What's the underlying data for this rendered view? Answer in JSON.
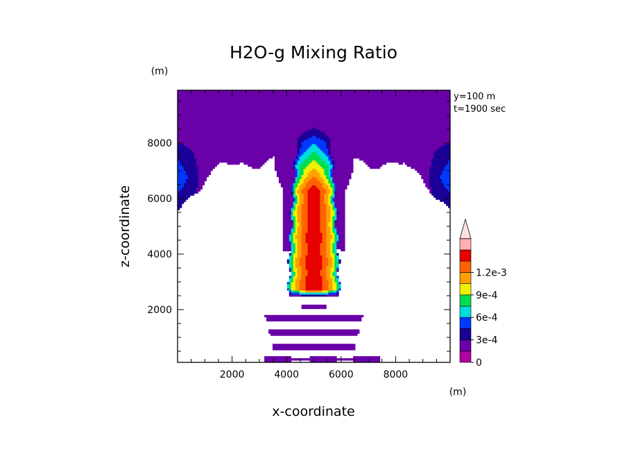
{
  "chart_data": {
    "type": "heatmap",
    "title": "H2O-g Mixing Ratio",
    "xlabel": "x-coordinate",
    "ylabel": "z-coordinate",
    "x_unit": "(m)",
    "y_unit": "(m)",
    "annotations": [
      "y=100 m",
      "t=1900 sec"
    ],
    "xlim": [
      0,
      10000
    ],
    "ylim": [
      100,
      9900
    ],
    "x_ticks": [
      2000,
      4000,
      6000,
      8000
    ],
    "y_ticks": [
      2000,
      4000,
      6000,
      8000
    ],
    "x_tick_labels": [
      "2000",
      "4000",
      "6000",
      "8000"
    ],
    "y_tick_labels": [
      "2000",
      "4000",
      "6000",
      "8000"
    ],
    "colorbar": {
      "levels": [
        0,
        0.00015,
        0.0003,
        0.00045,
        0.0006,
        0.00075,
        0.0009,
        0.00105,
        0.0012,
        0.00135
      ],
      "labels": [
        "0",
        "3e-4",
        "6e-4",
        "9e-4",
        "1.2e-3"
      ],
      "label_levels": [
        0,
        0.0003,
        0.0006,
        0.0009,
        0.0012
      ],
      "colors": [
        "#b0009f",
        "#6a00a8",
        "#1a0096",
        "#0038ff",
        "#00dcdc",
        "#00dc50",
        "#f0f000",
        "#ffa000",
        "#ff6400",
        "#e60000",
        "#ffb0b0",
        "#ffe0e0"
      ],
      "extend": "max"
    },
    "plume": {
      "center_x": 5000,
      "base_z": 2600,
      "top_z": 8700,
      "max_value": 0.00135
    },
    "upper_layer": {
      "value": 0.0001,
      "base_z_edges": 5500,
      "base_z_mid": 7400
    }
  }
}
